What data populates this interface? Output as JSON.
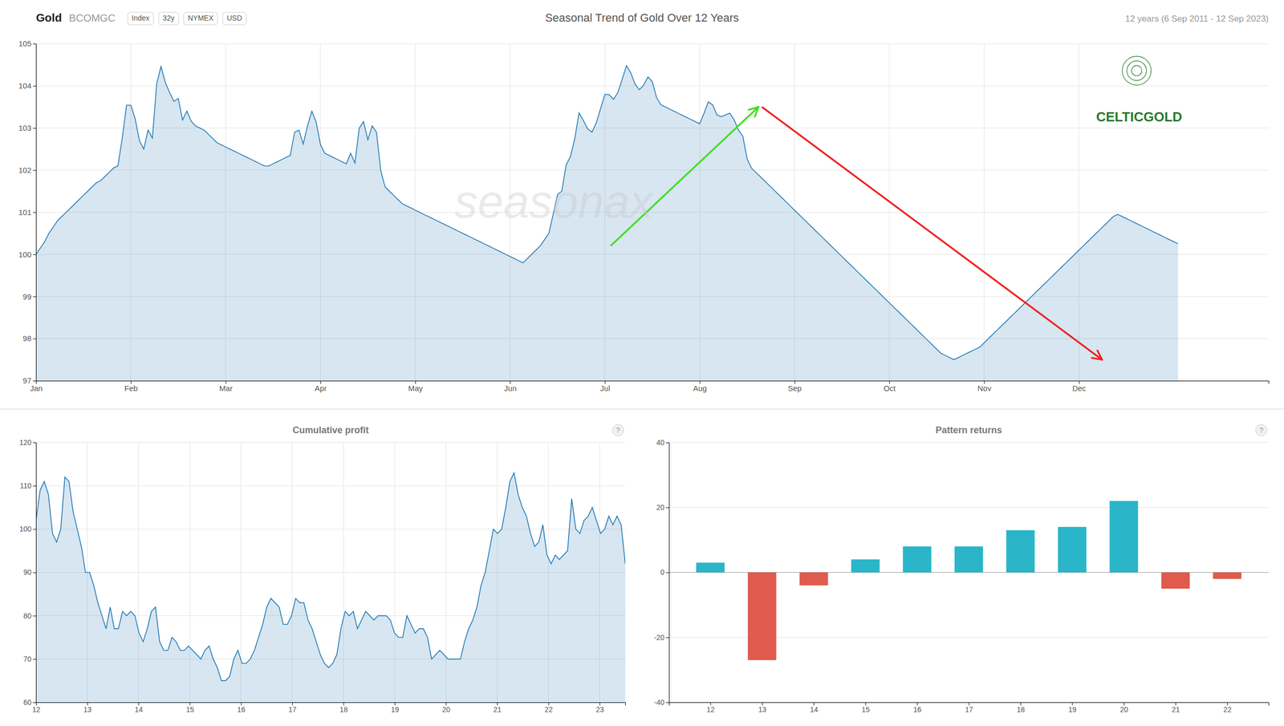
{
  "chart_data": [
    {
      "type": "area",
      "title": "Seasonal Trend of Gold Over 12 Years",
      "subtitle": "12 years (6 Sep 2011 - 12 Sep 2023)",
      "annotations": [
        "Gold",
        "BCOMGC",
        "seasonax",
        "CELTICGOLD"
      ],
      "tags": [
        "Index",
        "32y",
        "NYMEX",
        "USD"
      ],
      "x": [
        0,
        1,
        2,
        3,
        4,
        5,
        6,
        7,
        8,
        9,
        10,
        11,
        12,
        13,
        14,
        15,
        16,
        17,
        18,
        19,
        20,
        21,
        22,
        23,
        24,
        25,
        26,
        27,
        28,
        29,
        30,
        31,
        32,
        33,
        34,
        35,
        36,
        37,
        38,
        39,
        40,
        41,
        42,
        43,
        44,
        45,
        46,
        47,
        48,
        49,
        50,
        51,
        52,
        53,
        54,
        55,
        56,
        57,
        58,
        59,
        60,
        61,
        62,
        63,
        64,
        65,
        66,
        67,
        68,
        69,
        70,
        71,
        72,
        73,
        74,
        75,
        76,
        77,
        78,
        79,
        80,
        81,
        82,
        83,
        84,
        85,
        86,
        87,
        88,
        89,
        90,
        91,
        92,
        93,
        94,
        95,
        96,
        97,
        98,
        99,
        100,
        101,
        102,
        103,
        104,
        105,
        106,
        107,
        108,
        109,
        110,
        111,
        112,
        113,
        114,
        115,
        116,
        117,
        118,
        119,
        120,
        121,
        122,
        123,
        124,
        125,
        126,
        127,
        128,
        129,
        130,
        131,
        132,
        133,
        134,
        135,
        136,
        137,
        138,
        139,
        140,
        141,
        142,
        143,
        144,
        145,
        146,
        147,
        148,
        149,
        150,
        151,
        152,
        153,
        154,
        155,
        156,
        157,
        158,
        159,
        160,
        161,
        162,
        163,
        164,
        165,
        166,
        167,
        168,
        169,
        170,
        171,
        172,
        173,
        174,
        175,
        176,
        177,
        178,
        179,
        180,
        181,
        182,
        183,
        184,
        185,
        186,
        187,
        188,
        189,
        190,
        191,
        192,
        193,
        194,
        195,
        196,
        197,
        198,
        199,
        200,
        201,
        202,
        203,
        204,
        205,
        206,
        207,
        208,
        209,
        210,
        211,
        212,
        213,
        214,
        215,
        216,
        217,
        218,
        219,
        220,
        221,
        222,
        223,
        224,
        225,
        226,
        227,
        228,
        229,
        230,
        231,
        232,
        233,
        234,
        235,
        236,
        237,
        238,
        239,
        240,
        241,
        242,
        243,
        244,
        245,
        246,
        247,
        248,
        249,
        250,
        251,
        252,
        253,
        254,
        255,
        256,
        257,
        258,
        259,
        260,
        261,
        262,
        263,
        264,
        265
      ],
      "values": [
        100.0,
        100.15,
        100.3,
        100.5,
        100.65,
        100.8,
        100.9,
        101.0,
        101.1,
        101.2,
        101.3,
        101.4,
        101.5,
        101.6,
        101.7,
        101.75,
        101.85,
        101.95,
        102.05,
        102.1,
        102.75,
        103.54,
        103.54,
        103.22,
        102.7,
        102.5,
        102.95,
        102.76,
        104.05,
        104.46,
        104.08,
        103.84,
        103.63,
        103.7,
        103.19,
        103.4,
        103.16,
        103.05,
        103.0,
        102.95,
        102.85,
        102.75,
        102.65,
        102.6,
        102.55,
        102.5,
        102.45,
        102.4,
        102.35,
        102.3,
        102.25,
        102.2,
        102.15,
        102.1,
        102.1,
        102.15,
        102.2,
        102.25,
        102.3,
        102.35,
        102.9,
        102.95,
        102.62,
        103.05,
        103.4,
        103.14,
        102.61,
        102.4,
        102.35,
        102.3,
        102.25,
        102.2,
        102.15,
        102.4,
        102.17,
        103.0,
        103.15,
        102.72,
        103.05,
        102.9,
        101.98,
        101.6,
        101.5,
        101.4,
        101.3,
        101.2,
        101.15,
        101.1,
        101.05,
        101.0,
        100.95,
        100.9,
        100.85,
        100.8,
        100.75,
        100.7,
        100.65,
        100.6,
        100.55,
        100.5,
        100.45,
        100.4,
        100.35,
        100.3,
        100.25,
        100.2,
        100.15,
        100.1,
        100.05,
        100.0,
        99.95,
        99.9,
        99.85,
        99.8,
        99.9,
        100.0,
        100.1,
        100.2,
        100.35,
        100.5,
        100.95,
        101.42,
        101.5,
        102.12,
        102.32,
        102.74,
        103.36,
        103.18,
        102.98,
        102.9,
        103.12,
        103.46,
        103.8,
        103.79,
        103.68,
        103.84,
        104.15,
        104.48,
        104.31,
        104.04,
        103.91,
        104.02,
        104.21,
        104.1,
        103.72,
        103.55,
        103.5,
        103.45,
        103.4,
        103.35,
        103.3,
        103.25,
        103.2,
        103.15,
        103.1,
        103.35,
        103.62,
        103.55,
        103.31,
        103.27,
        103.31,
        103.35,
        103.19,
        102.95,
        102.81,
        102.27,
        102.05,
        101.95,
        101.85,
        101.75,
        101.65,
        101.55,
        101.45,
        101.35,
        101.25,
        101.15,
        101.05,
        100.95,
        100.85,
        100.75,
        100.65,
        100.55,
        100.45,
        100.35,
        100.25,
        100.15,
        100.05,
        99.95,
        99.85,
        99.75,
        99.65,
        99.55,
        99.45,
        99.35,
        99.25,
        99.15,
        99.05,
        98.95,
        98.85,
        98.75,
        98.65,
        98.55,
        98.45,
        98.35,
        98.25,
        98.15,
        98.05,
        97.95,
        97.85,
        97.75,
        97.65,
        97.6,
        97.55,
        97.5,
        97.55,
        97.6,
        97.65,
        97.7,
        97.75,
        97.8,
        97.9,
        98.0,
        98.1,
        98.2,
        98.3,
        98.4,
        98.5,
        98.6,
        98.7,
        98.8,
        98.9,
        99.0,
        99.1,
        99.2,
        99.3,
        99.4,
        99.5,
        99.6,
        99.7,
        99.8,
        99.9,
        100.0,
        100.1,
        100.2,
        100.3,
        100.4,
        100.5,
        100.6,
        100.7,
        100.8,
        100.9,
        100.95,
        100.9,
        100.85,
        100.8,
        100.75,
        100.7,
        100.65,
        100.6,
        100.55,
        100.5,
        100.45,
        100.4,
        100.35,
        100.3,
        100.25
      ],
      "arrows": [
        {
          "x": [
            133.32,
            167.64
          ],
          "y": [
            100.2,
            103.5
          ],
          "color": "#44dd22"
        },
        {
          "x": [
            168.432,
            247.368
          ],
          "y": [
            103.5,
            97.5
          ],
          "color": "#ee2222"
        }
      ],
      "xlim": [
        0,
        286
      ],
      "xticks": [
        {
          "value": 0,
          "label": "Jan"
        },
        {
          "value": 22,
          "label": "Feb"
        },
        {
          "value": 44,
          "label": "Mar"
        },
        {
          "value": 66,
          "label": "Apr"
        },
        {
          "value": 88,
          "label": "May"
        },
        {
          "value": 110,
          "label": "Jun"
        },
        {
          "value": 132,
          "label": "Jul"
        },
        {
          "value": 154,
          "label": "Aug"
        },
        {
          "value": 176,
          "label": "Sep"
        },
        {
          "value": 198,
          "label": "Oct"
        },
        {
          "value": 220,
          "label": "Nov"
        },
        {
          "value": 242,
          "label": "Dec"
        }
      ],
      "ylim": [
        97,
        105
      ],
      "yticks": [
        97,
        98,
        99,
        100,
        101,
        102,
        103,
        104,
        105
      ],
      "grid": true
    },
    {
      "type": "area",
      "title": "Cumulative profit",
      "annotations": [
        "?"
      ],
      "values": [
        102,
        109,
        111,
        108,
        99,
        97,
        100,
        112,
        111,
        104,
        100,
        96,
        90,
        90,
        87,
        83,
        80,
        77,
        82,
        77,
        77,
        81,
        80,
        81,
        80,
        76,
        74,
        77,
        81,
        82,
        74,
        72,
        72,
        75,
        74,
        72,
        72,
        73,
        72,
        71,
        70,
        72,
        73,
        70,
        68,
        65,
        65,
        66,
        70,
        72,
        69,
        69,
        70,
        72,
        75,
        78,
        82,
        84,
        83,
        82,
        78,
        78,
        80,
        84,
        83,
        83,
        79,
        77,
        74,
        71,
        69,
        68,
        69,
        71,
        77,
        81,
        80,
        81,
        77,
        79,
        81,
        80,
        79,
        80,
        80,
        80,
        79,
        76,
        75,
        75,
        80,
        78,
        76,
        77,
        77,
        75,
        70,
        71,
        72,
        71,
        70,
        70,
        70,
        70,
        74,
        77,
        79,
        82,
        87,
        90,
        95,
        100,
        99,
        100,
        105,
        111,
        113,
        108,
        105,
        103,
        99,
        96,
        97,
        101,
        94,
        92,
        94,
        93,
        94,
        95,
        107,
        100,
        99,
        102,
        103,
        105,
        102,
        99,
        100,
        103,
        101,
        103,
        101,
        92
      ],
      "xlim": [
        12,
        23.5
      ],
      "xticks": [
        12,
        13,
        14,
        15,
        16,
        17,
        18,
        19,
        20,
        21,
        22,
        23
      ],
      "ylim": [
        60,
        120
      ],
      "yticks": [
        60,
        70,
        80,
        90,
        100,
        110,
        120
      ],
      "grid": true
    },
    {
      "type": "bar",
      "title": "Pattern returns",
      "annotations": [
        "?"
      ],
      "x": [
        12,
        13,
        14,
        15,
        16,
        17,
        18,
        19,
        20,
        21,
        22
      ],
      "values": [
        3.0,
        -27.0,
        -4.0,
        4.0,
        8.0,
        8.0,
        13.0,
        14.0,
        22.0,
        -5.0,
        -2.0
      ],
      "colors": [
        "#2ab5c8",
        "#e05a4e",
        "#e05a4e",
        "#2ab5c8",
        "#2ab5c8",
        "#2ab5c8",
        "#2ab5c8",
        "#2ab5c8",
        "#2ab5c8",
        "#e05a4e",
        "#e05a4e"
      ],
      "xlim": [
        11.2,
        22.8
      ],
      "xticks": [
        12,
        13,
        14,
        15,
        16,
        17,
        18,
        19,
        20,
        21,
        22
      ],
      "ylim": [
        -40,
        40
      ],
      "yticks": [
        -40,
        -20,
        0,
        20,
        40
      ],
      "grid": "y"
    }
  ]
}
